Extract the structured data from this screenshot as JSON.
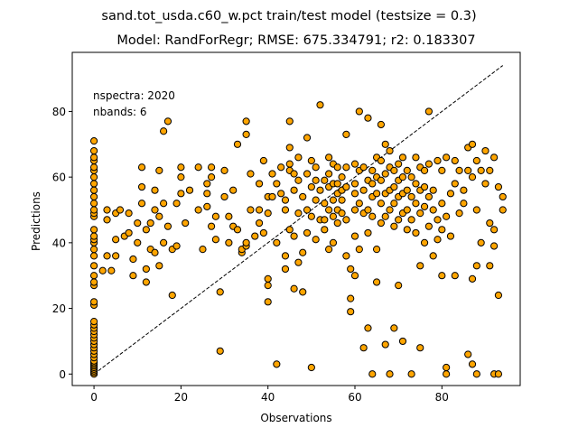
{
  "chart_data": {
    "type": "scatter",
    "suptitle": "sand.tot_usda.c60_w.pct train/test model (testsize = 0.3)",
    "title": "Model: RandForRegr; RMSE: 675.334791; r2: 0.183307",
    "xlabel": "Observations",
    "ylabel": "Predictions",
    "xlim": [
      -5,
      98
    ],
    "ylim": [
      -3.5,
      98
    ],
    "xticks": [
      0,
      20,
      40,
      60,
      80
    ],
    "yticks": [
      0,
      20,
      40,
      60,
      80
    ],
    "grid": false,
    "annotations": [
      "nspectra: 2020",
      "nbands: 6"
    ],
    "reference_line": {
      "style": "dashed",
      "from": [
        0,
        0
      ],
      "to": [
        94,
        94
      ]
    },
    "marker_color": "#ffa500",
    "marker_edge_color": "#000000",
    "points": [
      [
        0,
        0
      ],
      [
        0,
        0.5
      ],
      [
        0,
        1
      ],
      [
        0,
        1.5
      ],
      [
        0,
        2
      ],
      [
        0,
        2.5
      ],
      [
        0,
        3
      ],
      [
        0,
        3.5
      ],
      [
        0,
        4
      ],
      [
        0,
        5
      ],
      [
        0,
        6
      ],
      [
        0,
        7
      ],
      [
        0,
        8
      ],
      [
        0,
        9
      ],
      [
        0,
        10
      ],
      [
        0,
        11
      ],
      [
        0,
        12
      ],
      [
        0,
        13
      ],
      [
        0,
        14
      ],
      [
        0,
        15
      ],
      [
        0,
        16
      ],
      [
        0,
        21
      ],
      [
        0,
        22
      ],
      [
        0,
        27
      ],
      [
        0,
        28
      ],
      [
        0,
        30
      ],
      [
        0,
        33
      ],
      [
        0,
        36
      ],
      [
        0,
        38
      ],
      [
        0,
        40
      ],
      [
        0,
        41
      ],
      [
        0,
        42
      ],
      [
        0,
        44
      ],
      [
        0,
        48
      ],
      [
        0,
        49
      ],
      [
        0,
        50
      ],
      [
        0,
        52
      ],
      [
        0,
        54
      ],
      [
        0,
        56
      ],
      [
        0,
        58
      ],
      [
        0,
        60
      ],
      [
        0,
        62
      ],
      [
        0,
        63
      ],
      [
        0,
        65
      ],
      [
        0,
        66
      ],
      [
        0,
        68
      ],
      [
        0,
        71
      ],
      [
        2,
        31.5
      ],
      [
        3,
        36
      ],
      [
        3,
        47
      ],
      [
        3,
        50
      ],
      [
        4,
        31.5
      ],
      [
        5,
        49
      ],
      [
        5,
        41
      ],
      [
        5,
        36
      ],
      [
        6,
        50
      ],
      [
        7,
        42
      ],
      [
        8,
        43
      ],
      [
        8,
        49
      ],
      [
        9,
        35
      ],
      [
        9,
        30
      ],
      [
        10,
        40
      ],
      [
        10,
        46
      ],
      [
        11,
        57
      ],
      [
        11,
        52
      ],
      [
        11,
        63
      ],
      [
        12,
        28
      ],
      [
        12,
        44
      ],
      [
        12,
        32
      ],
      [
        13,
        46
      ],
      [
        13,
        38
      ],
      [
        14,
        37
      ],
      [
        14,
        50
      ],
      [
        14,
        56
      ],
      [
        15,
        62
      ],
      [
        15,
        48
      ],
      [
        15,
        33
      ],
      [
        16,
        40
      ],
      [
        16,
        52
      ],
      [
        16,
        74
      ],
      [
        17,
        77
      ],
      [
        17,
        45
      ],
      [
        18,
        38
      ],
      [
        18,
        24
      ],
      [
        19,
        39
      ],
      [
        19,
        52
      ],
      [
        20,
        55
      ],
      [
        20,
        60
      ],
      [
        20,
        63
      ],
      [
        21,
        46
      ],
      [
        22,
        56
      ],
      [
        24,
        63
      ],
      [
        24,
        50
      ],
      [
        25,
        38
      ],
      [
        26,
        58
      ],
      [
        26,
        55
      ],
      [
        26,
        51
      ],
      [
        27,
        63
      ],
      [
        27,
        60
      ],
      [
        27,
        45
      ],
      [
        28,
        48
      ],
      [
        28,
        41
      ],
      [
        29,
        25
      ],
      [
        29,
        7
      ],
      [
        30,
        62
      ],
      [
        30,
        54
      ],
      [
        31,
        40
      ],
      [
        31,
        48
      ],
      [
        32,
        45
      ],
      [
        32,
        56
      ],
      [
        33,
        70
      ],
      [
        33,
        44
      ],
      [
        34,
        37
      ],
      [
        34,
        38
      ],
      [
        35,
        39
      ],
      [
        35,
        73
      ],
      [
        35,
        77
      ],
      [
        35,
        40
      ],
      [
        36,
        61
      ],
      [
        36,
        50
      ],
      [
        37,
        42
      ],
      [
        38,
        58
      ],
      [
        38,
        50
      ],
      [
        38,
        46
      ],
      [
        39,
        65
      ],
      [
        39,
        43
      ],
      [
        40,
        22
      ],
      [
        40,
        29
      ],
      [
        40,
        27
      ],
      [
        40,
        54
      ],
      [
        40,
        49
      ],
      [
        41,
        54
      ],
      [
        41,
        61
      ],
      [
        42,
        3
      ],
      [
        42,
        58
      ],
      [
        42,
        40
      ],
      [
        43,
        63
      ],
      [
        43,
        55
      ],
      [
        44,
        53
      ],
      [
        44,
        50
      ],
      [
        44,
        36
      ],
      [
        44,
        32
      ],
      [
        45,
        64
      ],
      [
        45,
        69
      ],
      [
        45,
        62
      ],
      [
        45,
        77
      ],
      [
        45,
        44
      ],
      [
        46,
        61
      ],
      [
        46,
        56
      ],
      [
        46,
        42
      ],
      [
        46,
        26
      ],
      [
        47,
        59
      ],
      [
        47,
        49
      ],
      [
        47,
        34
      ],
      [
        47,
        66
      ],
      [
        48,
        54
      ],
      [
        48,
        37
      ],
      [
        48,
        25
      ],
      [
        49,
        61
      ],
      [
        49,
        50
      ],
      [
        49,
        43
      ],
      [
        49,
        72
      ],
      [
        50,
        2
      ],
      [
        50,
        57
      ],
      [
        50,
        48
      ],
      [
        50,
        65
      ],
      [
        51,
        63
      ],
      [
        51,
        59
      ],
      [
        51,
        53
      ],
      [
        51,
        41
      ],
      [
        52,
        82
      ],
      [
        52,
        56
      ],
      [
        52,
        47
      ],
      [
        53,
        59
      ],
      [
        53,
        52
      ],
      [
        53,
        47
      ],
      [
        53,
        44
      ],
      [
        54,
        66
      ],
      [
        54,
        61
      ],
      [
        54,
        57
      ],
      [
        54,
        50
      ],
      [
        54,
        38
      ],
      [
        55,
        64
      ],
      [
        55,
        58
      ],
      [
        55,
        53
      ],
      [
        55,
        48
      ],
      [
        55,
        40
      ],
      [
        56,
        63
      ],
      [
        56,
        58
      ],
      [
        56,
        55
      ],
      [
        56,
        50
      ],
      [
        56,
        46
      ],
      [
        57,
        60
      ],
      [
        57,
        56
      ],
      [
        57,
        53
      ],
      [
        57,
        49
      ],
      [
        58,
        73
      ],
      [
        58,
        63
      ],
      [
        58,
        57
      ],
      [
        58,
        47
      ],
      [
        58,
        36
      ],
      [
        59,
        32
      ],
      [
        59,
        23
      ],
      [
        59,
        19
      ],
      [
        60,
        64
      ],
      [
        60,
        58
      ],
      [
        60,
        55
      ],
      [
        60,
        50
      ],
      [
        60,
        42
      ],
      [
        60,
        30
      ],
      [
        61,
        80
      ],
      [
        61,
        62
      ],
      [
        61,
        52
      ],
      [
        61,
        38
      ],
      [
        62,
        63
      ],
      [
        62,
        56
      ],
      [
        62,
        49
      ],
      [
        62,
        8
      ],
      [
        63,
        78
      ],
      [
        63,
        59
      ],
      [
        63,
        50
      ],
      [
        63,
        43
      ],
      [
        63,
        14
      ],
      [
        64,
        62
      ],
      [
        64,
        58
      ],
      [
        64,
        54
      ],
      [
        64,
        48
      ],
      [
        64,
        0
      ],
      [
        65,
        66
      ],
      [
        65,
        60
      ],
      [
        65,
        55
      ],
      [
        65,
        38
      ],
      [
        65,
        28
      ],
      [
        66,
        76
      ],
      [
        66,
        65
      ],
      [
        66,
        59
      ],
      [
        66,
        52
      ],
      [
        66,
        46
      ],
      [
        67,
        70
      ],
      [
        67,
        61
      ],
      [
        67,
        55
      ],
      [
        67,
        48
      ],
      [
        67,
        9
      ],
      [
        68,
        68
      ],
      [
        68,
        63
      ],
      [
        68,
        56
      ],
      [
        68,
        50
      ],
      [
        68,
        0
      ],
      [
        69,
        62
      ],
      [
        69,
        57
      ],
      [
        69,
        52
      ],
      [
        69,
        45
      ],
      [
        69,
        14
      ],
      [
        70,
        64
      ],
      [
        70,
        59
      ],
      [
        70,
        54
      ],
      [
        70,
        47
      ],
      [
        70,
        27
      ],
      [
        71,
        66
      ],
      [
        71,
        60
      ],
      [
        71,
        55
      ],
      [
        71,
        49
      ],
      [
        71,
        10
      ],
      [
        72,
        62
      ],
      [
        72,
        56
      ],
      [
        72,
        50
      ],
      [
        72,
        44
      ],
      [
        73,
        60
      ],
      [
        73,
        54
      ],
      [
        73,
        47
      ],
      [
        73,
        0
      ],
      [
        74,
        66
      ],
      [
        74,
        58
      ],
      [
        74,
        52
      ],
      [
        74,
        43
      ],
      [
        75,
        63
      ],
      [
        75,
        56
      ],
      [
        75,
        49
      ],
      [
        75,
        33
      ],
      [
        75,
        8
      ],
      [
        76,
        62
      ],
      [
        76,
        57
      ],
      [
        76,
        51
      ],
      [
        76,
        40
      ],
      [
        77,
        80
      ],
      [
        77,
        64
      ],
      [
        77,
        54
      ],
      [
        77,
        45
      ],
      [
        78,
        56
      ],
      [
        78,
        50
      ],
      [
        78,
        36
      ],
      [
        79,
        65
      ],
      [
        79,
        47
      ],
      [
        79,
        41
      ],
      [
        80,
        62
      ],
      [
        80,
        52
      ],
      [
        80,
        44
      ],
      [
        80,
        30
      ],
      [
        81,
        2
      ],
      [
        81,
        0
      ],
      [
        81,
        66
      ],
      [
        81,
        48
      ],
      [
        82,
        55
      ],
      [
        82,
        42
      ],
      [
        83,
        65
      ],
      [
        83,
        58
      ],
      [
        83,
        30
      ],
      [
        84,
        62
      ],
      [
        84,
        49
      ],
      [
        85,
        56
      ],
      [
        85,
        52
      ],
      [
        86,
        69
      ],
      [
        86,
        62
      ],
      [
        86,
        6
      ],
      [
        87,
        70
      ],
      [
        87,
        60
      ],
      [
        87,
        29
      ],
      [
        87,
        3
      ],
      [
        88,
        65
      ],
      [
        88,
        50
      ],
      [
        88,
        33
      ],
      [
        88,
        0
      ],
      [
        89,
        62
      ],
      [
        89,
        40
      ],
      [
        90,
        68
      ],
      [
        90,
        58
      ],
      [
        91,
        62
      ],
      [
        91,
        46
      ],
      [
        91,
        33
      ],
      [
        92,
        66
      ],
      [
        92,
        44
      ],
      [
        92,
        39
      ],
      [
        92,
        0
      ],
      [
        93,
        57
      ],
      [
        93,
        24
      ],
      [
        93,
        0
      ],
      [
        94,
        54
      ],
      [
        94,
        50
      ]
    ]
  }
}
